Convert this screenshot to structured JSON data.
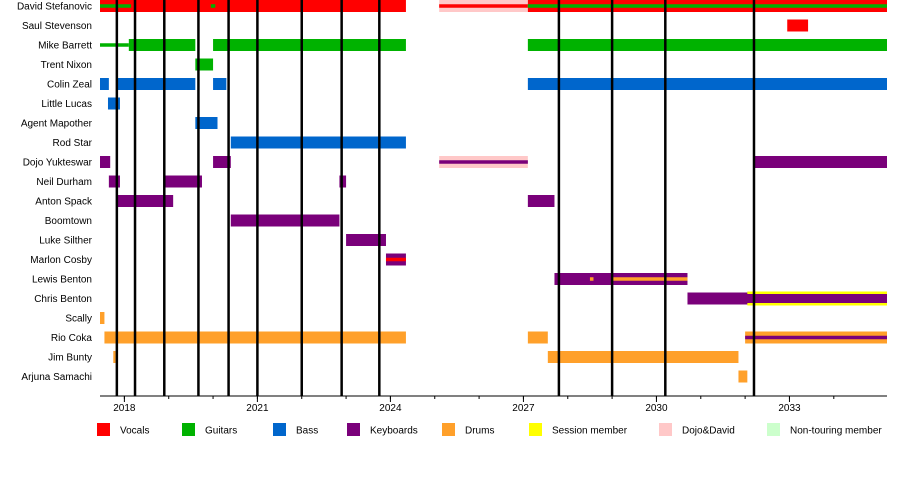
{
  "chart_data": {
    "type": "timeline",
    "x_range": [
      2017.45,
      2035.2
    ],
    "tick_labels": [
      "2018",
      "2021",
      "2024",
      "2027",
      "2030",
      "2033"
    ],
    "tick_values": [
      2018,
      2021,
      2024,
      2027,
      2030,
      2033
    ],
    "minor_ticks": [
      2018,
      2019,
      2020,
      2021,
      2022,
      2023,
      2024,
      2025,
      2026,
      2027,
      2028,
      2029,
      2030,
      2031,
      2032,
      2033,
      2034
    ],
    "event_lines": [
      2017.83,
      2018.24,
      2018.9,
      2019.67,
      2020.35,
      2021.0,
      2022.0,
      2022.9,
      2023.75,
      2027.8,
      2029.0,
      2030.2,
      2032.2
    ],
    "members": [
      "David Stefanovic",
      "Saul Stevenson",
      "Mike Barrett",
      "Trent Nixon",
      "Colin Zeal",
      "Little Lucas",
      "Agent Mapother",
      "Rod Star",
      "Dojo Yukteswar",
      "Neil Durham",
      "Anton Spack",
      "Boomtown",
      "Luke Silther",
      "Marlon Cosby",
      "Lewis Benton",
      "Chris Benton",
      "Scally",
      "Rio Coka",
      "Jim Bunty",
      "Arjuna Samachi"
    ],
    "legend": [
      {
        "key": "vocals",
        "label": "Vocals",
        "color": "#FF0000"
      },
      {
        "key": "guitars",
        "label": "Guitars",
        "color": "#00B200"
      },
      {
        "key": "bass",
        "label": "Bass",
        "color": "#0066CC"
      },
      {
        "key": "keyboards",
        "label": "Keyboards",
        "color": "#7A007A"
      },
      {
        "key": "drums",
        "label": "Drums",
        "color": "#FFA02A"
      },
      {
        "key": "session",
        "label": "Session member",
        "color": "#FFFF00"
      },
      {
        "key": "dojo_david",
        "label": "Dojo&David",
        "color": "#FFC8C8"
      },
      {
        "key": "nontouring",
        "label": "Non-touring member",
        "color": "#CCFFCC"
      }
    ],
    "bars": [
      {
        "member": 0,
        "role": "vocals",
        "start": 2017.45,
        "end": 2024.35
      },
      {
        "member": 0,
        "role": "guitars",
        "start": 2017.45,
        "end": 2018.15,
        "thin": true
      },
      {
        "member": 0,
        "role": "guitars",
        "start": 2019.95,
        "end": 2020.05,
        "thin": true
      },
      {
        "member": 0,
        "role": "dojo_david",
        "start": 2025.1,
        "end": 2027.1
      },
      {
        "member": 0,
        "role": "vocals",
        "start": 2025.1,
        "end": 2027.1,
        "thin": true
      },
      {
        "member": 0,
        "role": "vocals",
        "start": 2027.1,
        "end": 2035.2
      },
      {
        "member": 0,
        "role": "guitars",
        "start": 2027.1,
        "end": 2035.2,
        "thin": true
      },
      {
        "member": 1,
        "role": "vocals",
        "start": 2032.95,
        "end": 2033.42
      },
      {
        "member": 2,
        "role": "guitars",
        "start": 2017.45,
        "end": 2018.1,
        "thin": true
      },
      {
        "member": 2,
        "role": "guitars",
        "start": 2018.1,
        "end": 2019.6
      },
      {
        "member": 2,
        "role": "guitars",
        "start": 2020.0,
        "end": 2024.35
      },
      {
        "member": 2,
        "role": "guitars",
        "start": 2027.1,
        "end": 2035.2
      },
      {
        "member": 3,
        "role": "guitars",
        "start": 2019.6,
        "end": 2020.0
      },
      {
        "member": 4,
        "role": "bass",
        "start": 2017.45,
        "end": 2017.65
      },
      {
        "member": 4,
        "role": "bass",
        "start": 2017.85,
        "end": 2019.6
      },
      {
        "member": 4,
        "role": "bass",
        "start": 2020.0,
        "end": 2020.3
      },
      {
        "member": 4,
        "role": "bass",
        "start": 2027.1,
        "end": 2035.2
      },
      {
        "member": 5,
        "role": "bass",
        "start": 2017.63,
        "end": 2017.9
      },
      {
        "member": 6,
        "role": "bass",
        "start": 2019.6,
        "end": 2020.1
      },
      {
        "member": 7,
        "role": "bass",
        "start": 2020.4,
        "end": 2024.35
      },
      {
        "member": 8,
        "role": "keyboards",
        "start": 2017.45,
        "end": 2017.68
      },
      {
        "member": 8,
        "role": "keyboards",
        "start": 2020.0,
        "end": 2020.4
      },
      {
        "member": 8,
        "role": "dojo_david",
        "start": 2025.1,
        "end": 2027.1
      },
      {
        "member": 8,
        "role": "keyboards",
        "start": 2025.1,
        "end": 2027.1,
        "thin": true
      },
      {
        "member": 8,
        "role": "keyboards",
        "start": 2032.2,
        "end": 2035.2
      },
      {
        "member": 9,
        "role": "keyboards",
        "start": 2017.65,
        "end": 2017.9
      },
      {
        "member": 9,
        "role": "keyboards",
        "start": 2018.9,
        "end": 2019.75
      },
      {
        "member": 9,
        "role": "keyboards",
        "start": 2022.85,
        "end": 2023.0
      },
      {
        "member": 10,
        "role": "keyboards",
        "start": 2017.85,
        "end": 2019.1
      },
      {
        "member": 10,
        "role": "keyboards",
        "start": 2027.1,
        "end": 2027.7
      },
      {
        "member": 11,
        "role": "keyboards",
        "start": 2020.4,
        "end": 2022.85
      },
      {
        "member": 12,
        "role": "keyboards",
        "start": 2023.0,
        "end": 2023.9
      },
      {
        "member": 13,
        "role": "keyboards",
        "start": 2023.9,
        "end": 2024.35
      },
      {
        "member": 13,
        "role": "vocals",
        "start": 2023.9,
        "end": 2024.35,
        "thin": true
      },
      {
        "member": 14,
        "role": "keyboards",
        "start": 2027.7,
        "end": 2030.7
      },
      {
        "member": 14,
        "role": "drums",
        "start": 2028.5,
        "end": 2028.58,
        "thin": true
      },
      {
        "member": 14,
        "role": "drums",
        "start": 2029.0,
        "end": 2030.7,
        "thin": true
      },
      {
        "member": 15,
        "role": "keyboards",
        "start": 2030.7,
        "end": 2035.2
      },
      {
        "member": 15,
        "role": "session",
        "start": 2032.05,
        "end": 2035.2,
        "outline": true
      },
      {
        "member": 16,
        "role": "drums",
        "start": 2017.45,
        "end": 2017.55
      },
      {
        "member": 17,
        "role": "drums",
        "start": 2017.55,
        "end": 2024.35
      },
      {
        "member": 17,
        "role": "drums",
        "start": 2027.1,
        "end": 2027.55
      },
      {
        "member": 17,
        "role": "drums",
        "start": 2032.0,
        "end": 2035.2
      },
      {
        "member": 17,
        "role": "keyboards",
        "start": 2032.0,
        "end": 2035.2,
        "thin": true
      },
      {
        "member": 18,
        "role": "drums",
        "start": 2017.75,
        "end": 2017.8
      },
      {
        "member": 18,
        "role": "drums",
        "start": 2027.55,
        "end": 2031.85
      },
      {
        "member": 19,
        "role": "drums",
        "start": 2031.85,
        "end": 2032.05
      }
    ]
  }
}
